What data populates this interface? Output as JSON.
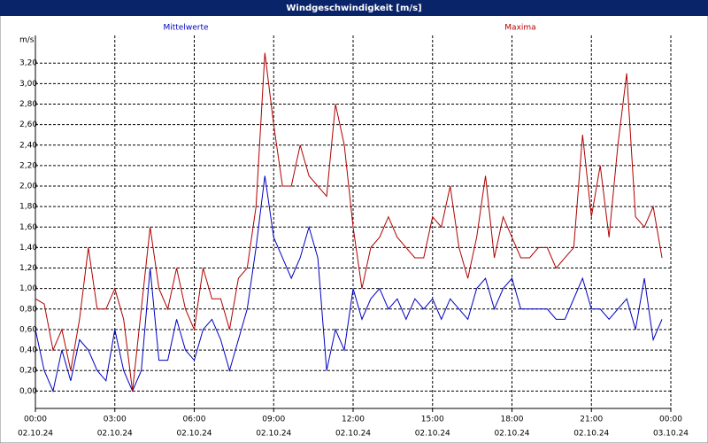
{
  "chart_data": {
    "type": "line",
    "title": "Windgeschwindigkeit [m/s]",
    "y_label": "m/s",
    "x": [
      0,
      20,
      40,
      60,
      80,
      100,
      120,
      140,
      160,
      180,
      200,
      220,
      240,
      260,
      280,
      300,
      320,
      340,
      360,
      380,
      400,
      420,
      440,
      460,
      480,
      500,
      520,
      540,
      560,
      580,
      600,
      620,
      640,
      660,
      680,
      700,
      720,
      740,
      760,
      780,
      800,
      820,
      840,
      860,
      880,
      900,
      920,
      940,
      960,
      980,
      1000,
      1020,
      1040,
      1060,
      1080,
      1100,
      1120,
      1140,
      1160,
      1180,
      1200,
      1220,
      1240,
      1260,
      1280,
      1300,
      1320,
      1340,
      1360,
      1380,
      1400,
      1420
    ],
    "series": [
      {
        "name": "Mittelwerte",
        "color": "#0000c0",
        "values": [
          0.6,
          0.2,
          0.0,
          0.4,
          0.1,
          0.5,
          0.4,
          0.2,
          0.1,
          0.6,
          0.2,
          0.0,
          0.2,
          1.2,
          0.3,
          0.3,
          0.7,
          0.4,
          0.3,
          0.6,
          0.7,
          0.5,
          0.2,
          0.5,
          0.8,
          1.4,
          2.1,
          1.5,
          1.3,
          1.1,
          1.3,
          1.6,
          1.3,
          0.2,
          0.6,
          0.4,
          1.0,
          0.7,
          0.9,
          1.0,
          0.8,
          0.9,
          0.7,
          0.9,
          0.8,
          0.9,
          0.7,
          0.9,
          0.8,
          0.7,
          1.0,
          1.1,
          0.8,
          1.0,
          1.1,
          0.8,
          0.8,
          0.8,
          0.8,
          0.7,
          0.7,
          0.9,
          1.1,
          0.8,
          0.8,
          0.7,
          0.8,
          0.9,
          0.6,
          1.1,
          0.5,
          0.7
        ]
      },
      {
        "name": "Maxima",
        "color": "#b00000",
        "values": [
          0.9,
          0.85,
          0.4,
          0.6,
          0.2,
          0.7,
          1.4,
          0.8,
          0.8,
          1.0,
          0.7,
          0.0,
          0.8,
          1.6,
          1.0,
          0.8,
          1.2,
          0.8,
          0.6,
          1.2,
          0.9,
          0.9,
          0.6,
          1.1,
          1.2,
          1.8,
          3.3,
          2.6,
          2.0,
          2.0,
          2.4,
          2.1,
          2.0,
          1.9,
          2.8,
          2.4,
          1.6,
          1.0,
          1.4,
          1.5,
          1.7,
          1.5,
          1.4,
          1.3,
          1.3,
          1.7,
          1.6,
          2.0,
          1.4,
          1.1,
          1.5,
          2.1,
          1.3,
          1.7,
          1.5,
          1.3,
          1.3,
          1.4,
          1.4,
          1.2,
          1.3,
          1.4,
          2.5,
          1.7,
          2.2,
          1.5,
          2.4,
          3.1,
          1.7,
          1.6,
          1.8,
          1.3
        ]
      }
    ],
    "xlim": [
      0,
      1440
    ],
    "xticks": [
      {
        "value": 0,
        "label": "00:00"
      },
      {
        "value": 180,
        "label": "03:00"
      },
      {
        "value": 360,
        "label": "06:00"
      },
      {
        "value": 540,
        "label": "09:00"
      },
      {
        "value": 720,
        "label": "12:00"
      },
      {
        "value": 900,
        "label": "15:00"
      },
      {
        "value": 1080,
        "label": "18:00"
      },
      {
        "value": 1260,
        "label": "21:00"
      },
      {
        "value": 1440,
        "label": "00:00"
      }
    ],
    "xtick_dates": [
      "02.10.24",
      "02.10.24",
      "02.10.24",
      "02.10.24",
      "02.10.24",
      "02.10.24",
      "02.10.24",
      "02.10.24",
      "03.10.24"
    ],
    "ylim": [
      -0.17,
      3.47
    ],
    "yticks": [
      {
        "value": 0,
        "label": "0,00"
      },
      {
        "value": 0.2,
        "label": "0,20"
      },
      {
        "value": 0.4,
        "label": "0,40"
      },
      {
        "value": 0.6,
        "label": "0,60"
      },
      {
        "value": 0.8,
        "label": "0,80"
      },
      {
        "value": 1,
        "label": "1,00"
      },
      {
        "value": 1.2,
        "label": "1,20"
      },
      {
        "value": 1.4,
        "label": "1,40"
      },
      {
        "value": 1.6,
        "label": "1,60"
      },
      {
        "value": 1.8,
        "label": "1,80"
      },
      {
        "value": 2,
        "label": "2,00"
      },
      {
        "value": 2.2,
        "label": "2,20"
      },
      {
        "value": 2.4,
        "label": "2,40"
      },
      {
        "value": 2.6,
        "label": "2,60"
      },
      {
        "value": 2.8,
        "label": "2,80"
      },
      {
        "value": 3,
        "label": "3,00"
      },
      {
        "value": 3.2,
        "label": "3,20"
      }
    ],
    "grid": true
  }
}
